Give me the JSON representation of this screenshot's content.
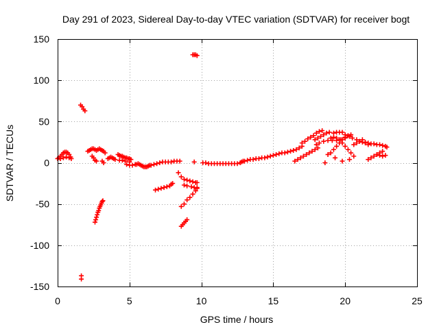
{
  "chart_data": {
    "type": "scatter",
    "title": "Day 291 of 2023, Sidereal Day-to-day VTEC variation (SDTVAR) for receiver bogt",
    "xlabel": "GPS time / hours",
    "ylabel": "SDTVAR / TECUs",
    "xlim": [
      0,
      25
    ],
    "ylim": [
      -150,
      150
    ],
    "xticks": [
      0,
      5,
      10,
      15,
      20,
      25
    ],
    "yticks": [
      -150,
      -100,
      -50,
      0,
      50,
      100,
      150
    ],
    "xtick_labels": [
      "0",
      "5",
      "10",
      "15",
      "20",
      "25"
    ],
    "ytick_labels": [
      "-150",
      "-100",
      "-50",
      "0",
      "50",
      "100",
      "150"
    ],
    "grid": true,
    "marker": "plus",
    "color": "#ff0000",
    "series": [
      {
        "name": "SDTVAR",
        "points": [
          [
            0.0,
            5
          ],
          [
            0.1,
            6
          ],
          [
            0.2,
            8
          ],
          [
            0.3,
            10
          ],
          [
            0.4,
            12
          ],
          [
            0.5,
            13
          ],
          [
            0.6,
            13
          ],
          [
            0.7,
            12
          ],
          [
            0.8,
            10
          ],
          [
            0.9,
            7
          ],
          [
            0.95,
            5
          ],
          [
            0.2,
            5
          ],
          [
            0.4,
            6
          ],
          [
            0.6,
            7
          ],
          [
            0.8,
            6
          ],
          [
            1.6,
            70
          ],
          [
            1.7,
            68
          ],
          [
            1.8,
            65
          ],
          [
            1.9,
            63
          ],
          [
            1.65,
            -137
          ],
          [
            1.65,
            -141
          ],
          [
            2.1,
            14
          ],
          [
            2.2,
            15
          ],
          [
            2.3,
            16
          ],
          [
            2.4,
            17
          ],
          [
            2.5,
            17
          ],
          [
            2.6,
            16
          ],
          [
            2.7,
            15
          ],
          [
            2.8,
            16
          ],
          [
            2.9,
            17
          ],
          [
            3.0,
            16
          ],
          [
            3.1,
            15
          ],
          [
            3.2,
            14
          ],
          [
            3.3,
            12
          ],
          [
            2.4,
            8
          ],
          [
            2.5,
            6
          ],
          [
            2.6,
            3
          ],
          [
            2.7,
            2
          ],
          [
            3.1,
            2
          ],
          [
            3.2,
            0
          ],
          [
            2.6,
            -72
          ],
          [
            2.65,
            -69
          ],
          [
            2.7,
            -66
          ],
          [
            2.75,
            -63
          ],
          [
            2.8,
            -60
          ],
          [
            2.85,
            -58
          ],
          [
            2.9,
            -55
          ],
          [
            2.95,
            -53
          ],
          [
            3.0,
            -51
          ],
          [
            3.05,
            -49
          ],
          [
            3.1,
            -47
          ],
          [
            3.15,
            -46
          ],
          [
            3.5,
            5
          ],
          [
            3.6,
            6
          ],
          [
            3.7,
            7
          ],
          [
            3.8,
            6
          ],
          [
            3.9,
            5
          ],
          [
            4.0,
            4
          ],
          [
            4.2,
            10
          ],
          [
            4.3,
            9
          ],
          [
            4.4,
            8
          ],
          [
            4.5,
            8
          ],
          [
            4.6,
            7
          ],
          [
            4.7,
            6
          ],
          [
            4.8,
            6
          ],
          [
            4.9,
            5
          ],
          [
            5.0,
            5
          ],
          [
            5.1,
            4
          ],
          [
            4.3,
            3
          ],
          [
            4.5,
            3
          ],
          [
            4.7,
            2
          ],
          [
            5.0,
            1
          ],
          [
            4.8,
            -2
          ],
          [
            5.0,
            -3
          ],
          [
            5.2,
            -3
          ],
          [
            5.4,
            -2
          ],
          [
            5.5,
            -2
          ],
          [
            5.6,
            -1
          ],
          [
            5.7,
            -2
          ],
          [
            5.8,
            -3
          ],
          [
            5.9,
            -4
          ],
          [
            6.0,
            -5
          ],
          [
            6.1,
            -5
          ],
          [
            6.2,
            -5
          ],
          [
            6.3,
            -4
          ],
          [
            6.4,
            -3
          ],
          [
            6.5,
            -3
          ],
          [
            6.7,
            -2
          ],
          [
            6.9,
            -1
          ],
          [
            7.1,
            0
          ],
          [
            7.3,
            1
          ],
          [
            7.5,
            1
          ],
          [
            7.7,
            1
          ],
          [
            7.9,
            1
          ],
          [
            8.1,
            2
          ],
          [
            8.3,
            2
          ],
          [
            8.5,
            2
          ],
          [
            6.8,
            -33
          ],
          [
            7.0,
            -32
          ],
          [
            7.2,
            -31
          ],
          [
            7.4,
            -30
          ],
          [
            7.6,
            -29
          ],
          [
            7.8,
            -28
          ],
          [
            7.9,
            -26
          ],
          [
            8.0,
            -25
          ],
          [
            8.4,
            -12
          ],
          [
            8.6,
            -17
          ],
          [
            8.8,
            -20
          ],
          [
            9.0,
            -21
          ],
          [
            9.2,
            -22
          ],
          [
            9.4,
            -23
          ],
          [
            9.6,
            -24
          ],
          [
            9.7,
            -24
          ],
          [
            8.8,
            -27
          ],
          [
            9.0,
            -28
          ],
          [
            9.3,
            -29
          ],
          [
            9.5,
            -30
          ],
          [
            9.7,
            -30
          ],
          [
            8.6,
            -53
          ],
          [
            8.8,
            -50
          ],
          [
            9.0,
            -45
          ],
          [
            9.2,
            -42
          ],
          [
            9.4,
            -38
          ],
          [
            9.6,
            -34
          ],
          [
            9.7,
            -31
          ],
          [
            8.6,
            -77
          ],
          [
            8.7,
            -75
          ],
          [
            8.8,
            -73
          ],
          [
            8.9,
            -71
          ],
          [
            9.0,
            -69
          ],
          [
            9.4,
            131
          ],
          [
            9.5,
            131
          ],
          [
            9.6,
            131
          ],
          [
            9.7,
            130
          ],
          [
            9.5,
            1
          ],
          [
            10.1,
            0
          ],
          [
            10.3,
            0
          ],
          [
            10.5,
            -1
          ],
          [
            10.7,
            -1
          ],
          [
            10.9,
            -1
          ],
          [
            11.1,
            -1
          ],
          [
            11.3,
            -1
          ],
          [
            11.5,
            -1
          ],
          [
            11.7,
            -1
          ],
          [
            11.9,
            -1
          ],
          [
            12.1,
            -1
          ],
          [
            12.3,
            -1
          ],
          [
            12.5,
            -1
          ],
          [
            12.7,
            0
          ],
          [
            12.8,
            1
          ],
          [
            12.9,
            2
          ],
          [
            13.0,
            2
          ],
          [
            13.2,
            3
          ],
          [
            13.4,
            4
          ],
          [
            13.6,
            4
          ],
          [
            13.8,
            5
          ],
          [
            14.0,
            5
          ],
          [
            14.2,
            6
          ],
          [
            14.4,
            6
          ],
          [
            14.6,
            7
          ],
          [
            14.8,
            8
          ],
          [
            15.0,
            9
          ],
          [
            15.2,
            10
          ],
          [
            15.4,
            11
          ],
          [
            15.6,
            12
          ],
          [
            15.8,
            12
          ],
          [
            16.0,
            13
          ],
          [
            16.2,
            14
          ],
          [
            16.4,
            15
          ],
          [
            16.6,
            16
          ],
          [
            16.8,
            18
          ],
          [
            17.0,
            20
          ],
          [
            16.5,
            2
          ],
          [
            16.7,
            4
          ],
          [
            16.9,
            6
          ],
          [
            17.1,
            8
          ],
          [
            17.3,
            10
          ],
          [
            17.5,
            12
          ],
          [
            17.7,
            14
          ],
          [
            17.9,
            16
          ],
          [
            18.1,
            18
          ],
          [
            17.0,
            24
          ],
          [
            17.2,
            26
          ],
          [
            17.4,
            29
          ],
          [
            17.6,
            31
          ],
          [
            17.8,
            33
          ],
          [
            18.0,
            36
          ],
          [
            18.2,
            38
          ],
          [
            18.4,
            39
          ],
          [
            17.9,
            28
          ],
          [
            18.1,
            30
          ],
          [
            18.3,
            32
          ],
          [
            18.5,
            34
          ],
          [
            18.7,
            36
          ],
          [
            18.9,
            37
          ],
          [
            18.0,
            22
          ],
          [
            18.2,
            24
          ],
          [
            18.5,
            26
          ],
          [
            18.8,
            27
          ],
          [
            19.1,
            27
          ],
          [
            19.4,
            27
          ],
          [
            19.7,
            28
          ],
          [
            20.0,
            30
          ],
          [
            20.3,
            32
          ],
          [
            20.5,
            30
          ],
          [
            18.8,
            10
          ],
          [
            19.0,
            12
          ],
          [
            19.2,
            16
          ],
          [
            19.4,
            20
          ],
          [
            19.6,
            24
          ],
          [
            19.8,
            28
          ],
          [
            20.0,
            31
          ],
          [
            20.2,
            33
          ],
          [
            20.4,
            34
          ],
          [
            19.0,
            30
          ],
          [
            19.2,
            31
          ],
          [
            19.4,
            30
          ],
          [
            19.6,
            28
          ],
          [
            19.8,
            24
          ],
          [
            20.0,
            20
          ],
          [
            20.2,
            16
          ],
          [
            20.4,
            12
          ],
          [
            20.6,
            8
          ],
          [
            19.2,
            36
          ],
          [
            19.4,
            37
          ],
          [
            19.6,
            37
          ],
          [
            19.8,
            37
          ],
          [
            20.0,
            34
          ],
          [
            20.6,
            22
          ],
          [
            20.8,
            24
          ],
          [
            21.0,
            26
          ],
          [
            21.2,
            28
          ],
          [
            21.4,
            25
          ],
          [
            21.6,
            22
          ],
          [
            20.3,
            4
          ],
          [
            21.6,
            4
          ],
          [
            21.8,
            6
          ],
          [
            22.0,
            8
          ],
          [
            22.2,
            10
          ],
          [
            22.4,
            12
          ],
          [
            22.6,
            14
          ],
          [
            20.8,
            28
          ],
          [
            21.0,
            26
          ],
          [
            21.2,
            25
          ],
          [
            21.4,
            24
          ],
          [
            21.6,
            24
          ],
          [
            21.8,
            23
          ],
          [
            22.0,
            23
          ],
          [
            22.2,
            22
          ],
          [
            22.4,
            22
          ],
          [
            22.6,
            21
          ],
          [
            22.8,
            20
          ],
          [
            22.9,
            19
          ],
          [
            22.2,
            10
          ],
          [
            22.4,
            9
          ],
          [
            22.6,
            8
          ],
          [
            22.8,
            9
          ],
          [
            18.6,
            0
          ],
          [
            19.3,
            6
          ],
          [
            19.8,
            2
          ]
        ]
      }
    ]
  }
}
